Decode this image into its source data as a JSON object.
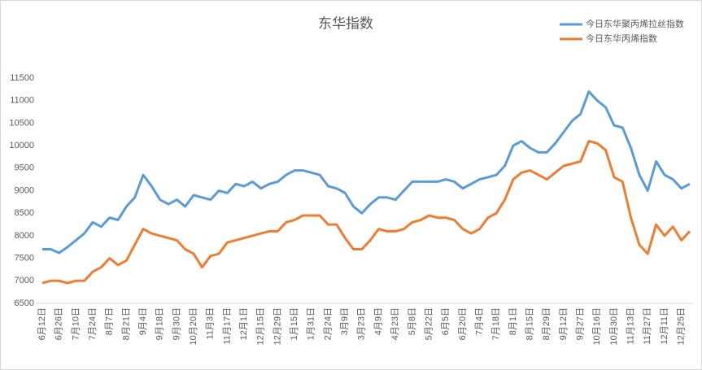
{
  "chart_data": {
    "type": "line",
    "title": "东华指数",
    "categories": [
      "6月12日",
      null,
      "6月26日",
      null,
      "7月10日",
      null,
      "7月24日",
      null,
      "8月7日",
      null,
      "8月21日",
      null,
      "9月4日",
      null,
      "9月18日",
      null,
      "9月30日",
      null,
      "10月20日",
      null,
      "11月3日",
      null,
      "11月17日",
      null,
      "12月1日",
      null,
      "12月15日",
      null,
      "12月29日",
      null,
      "1月15日",
      null,
      "1月31日",
      null,
      "2月24日",
      null,
      "3月9日",
      null,
      "3月23日",
      null,
      "4月9日",
      null,
      "4月23日",
      null,
      "5月8日",
      null,
      "5月22日",
      null,
      "6月5日",
      null,
      "6月20日",
      null,
      "7月4日",
      null,
      "7月18日",
      null,
      "8月1日",
      null,
      "8月15日",
      null,
      "8月29日",
      null,
      "9月12日",
      null,
      "9月27日",
      null,
      "10月16日",
      null,
      "10月30日",
      null,
      "11月13日",
      null,
      "11月27日",
      null,
      "12月11日",
      null,
      "12月25日",
      null
    ],
    "series": [
      {
        "name": "今日东华聚丙烯拉丝指数",
        "color": "#5b9bd5",
        "values": [
          7700,
          7700,
          7620,
          7750,
          7900,
          8050,
          8300,
          8200,
          8400,
          8350,
          8650,
          8850,
          9350,
          9100,
          8800,
          8700,
          8800,
          8650,
          8900,
          8850,
          8800,
          9000,
          8950,
          9150,
          9100,
          9200,
          9050,
          9150,
          9200,
          9350,
          9450,
          9450,
          9400,
          9350,
          9100,
          9050,
          8950,
          8650,
          8500,
          8700,
          8850,
          8850,
          8800,
          9000,
          9200,
          9200,
          9200,
          9200,
          9250,
          9200,
          9050,
          9150,
          9250,
          9300,
          9350,
          9550,
          10000,
          10100,
          9950,
          9850,
          9850,
          10050,
          10300,
          10550,
          10700,
          11200,
          11000,
          10850,
          10450,
          10400,
          9950,
          9350,
          9000,
          9650,
          9350,
          9250,
          9050,
          9150
        ]
      },
      {
        "name": "今日东华丙烯指数",
        "color": "#ed7d31",
        "values": [
          6950,
          7000,
          7000,
          6950,
          7000,
          7000,
          7200,
          7300,
          7500,
          7350,
          7450,
          7800,
          8150,
          8050,
          8000,
          7950,
          7900,
          7700,
          7600,
          7300,
          7550,
          7600,
          7850,
          7900,
          7950,
          8000,
          8050,
          8100,
          8100,
          8300,
          8350,
          8450,
          8450,
          8450,
          8250,
          8250,
          7950,
          7700,
          7700,
          7900,
          8150,
          8100,
          8100,
          8150,
          8300,
          8350,
          8450,
          8400,
          8400,
          8350,
          8150,
          8050,
          8150,
          8400,
          8500,
          8800,
          9250,
          9400,
          9450,
          9350,
          9250,
          9400,
          9550,
          9600,
          9650,
          10100,
          10050,
          9900,
          9300,
          9200,
          8400,
          7800,
          7600,
          8250,
          8000,
          8200,
          7900,
          8100
        ]
      }
    ],
    "ylim": [
      6500,
      11500
    ],
    "yticks": [
      6500,
      7000,
      7500,
      8000,
      8500,
      9000,
      9500,
      10000,
      10500,
      11000,
      11500
    ],
    "legend": "top-right"
  }
}
